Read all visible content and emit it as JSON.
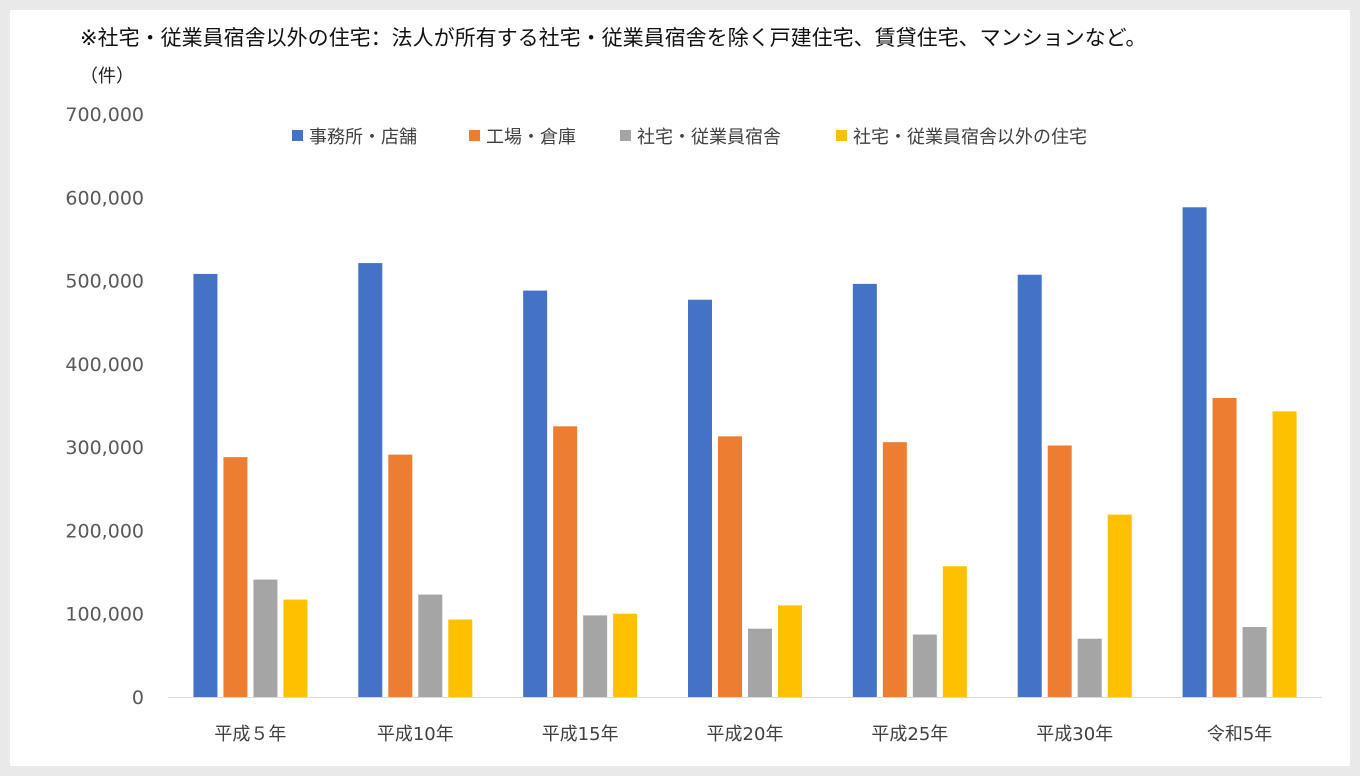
{
  "note": "※社宅・従業員宿舎以外の住宅：法人が所有する社宅・従業員宿舎を除く戸建住宅、賃貸住宅、マンションなど。",
  "chart_data": {
    "type": "bar",
    "title": "",
    "xlabel": "",
    "ylabel": "（件）",
    "ylim": [
      0,
      700000
    ],
    "yticks": [
      0,
      100000,
      200000,
      300000,
      400000,
      500000,
      600000,
      700000
    ],
    "ytick_labels": [
      "0",
      "100,000",
      "200,000",
      "300,000",
      "400,000",
      "500,000",
      "600,000",
      "700,000"
    ],
    "grid": false,
    "legend_position": "top-center",
    "categories": [
      "平成５年",
      "平成10年",
      "平成15年",
      "平成20年",
      "平成25年",
      "平成30年",
      "令和5年"
    ],
    "series": [
      {
        "name": "事務所・店舗",
        "color": "#4472c4",
        "values": [
          508000,
          521000,
          488000,
          477000,
          496000,
          507000,
          588000
        ]
      },
      {
        "name": "工場・倉庫",
        "color": "#ed7d31",
        "values": [
          288000,
          291000,
          325000,
          313000,
          306000,
          302000,
          359000
        ]
      },
      {
        "name": "社宅・従業員宿舎",
        "color": "#a5a5a5",
        "values": [
          141000,
          123000,
          98000,
          82000,
          75000,
          70000,
          84000
        ]
      },
      {
        "name": "社宅・従業員宿舎以外の住宅",
        "color": "#ffc000",
        "values": [
          117000,
          93000,
          100000,
          110000,
          157000,
          219000,
          343000
        ]
      }
    ]
  }
}
